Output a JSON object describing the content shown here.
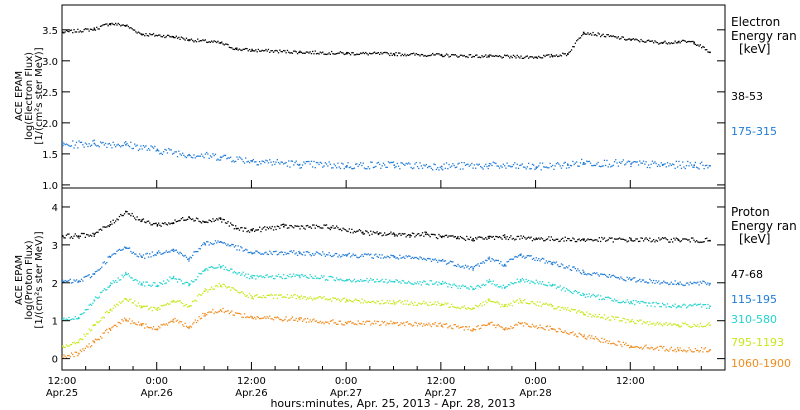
{
  "figure": {
    "xlabel": "hours:minutes, Apr. 25, 2013 - Apr. 28, 2013",
    "x_ticks": [
      {
        "time": "12:00",
        "date": "Apr.25"
      },
      {
        "time": "0:00",
        "date": "Apr.26"
      },
      {
        "time": "12:00",
        "date": "Apr.26"
      },
      {
        "time": "0:00",
        "date": "Apr.27"
      },
      {
        "time": "12:00",
        "date": "Apr.27"
      },
      {
        "time": "0:00",
        "date": "Apr.28"
      },
      {
        "time": "12:00",
        "date": ""
      }
    ]
  },
  "chart_data": [
    {
      "type": "scatter",
      "panel": "electron",
      "ylabel_lines": [
        "ACE EPAM",
        "log(Electron Flux)",
        "[1/(cm²s ster MeV)]"
      ],
      "x_unit": "hours since Apr. 25, 2013 12:00",
      "xlim": [
        0,
        84
      ],
      "ylim": [
        0.95,
        3.9
      ],
      "y_ticks": [
        "1.0",
        "1.5",
        "2.0",
        "2.5",
        "3.0",
        "3.5"
      ],
      "legend_title_lines": [
        "Electron",
        "Energy ran",
        "[keV]"
      ],
      "series": [
        {
          "name": "38-53",
          "color": "#000000",
          "x": [
            0,
            4,
            6,
            8,
            10,
            14,
            16,
            20,
            22,
            24,
            30,
            36,
            42,
            48,
            54,
            60,
            62,
            64,
            66,
            72,
            76,
            78,
            80,
            82
          ],
          "y": [
            3.47,
            3.52,
            3.61,
            3.58,
            3.44,
            3.4,
            3.35,
            3.3,
            3.2,
            3.18,
            3.15,
            3.13,
            3.12,
            3.1,
            3.08,
            3.07,
            3.09,
            3.12,
            3.47,
            3.35,
            3.3,
            3.32,
            3.31,
            3.15
          ]
        },
        {
          "name": "175-315",
          "color": "#1f7ad6",
          "x": [
            0,
            4,
            8,
            12,
            16,
            20,
            24,
            30,
            36,
            42,
            48,
            54,
            60,
            64,
            66,
            72,
            76,
            80,
            82
          ],
          "y": [
            1.65,
            1.68,
            1.66,
            1.57,
            1.5,
            1.46,
            1.4,
            1.34,
            1.32,
            1.33,
            1.31,
            1.32,
            1.3,
            1.33,
            1.37,
            1.35,
            1.33,
            1.33,
            1.32
          ]
        }
      ]
    },
    {
      "type": "scatter",
      "panel": "proton",
      "ylabel_lines": [
        "ACE EPAM",
        "log(Proton Flux)",
        "[1/(cm²s ster MeV)]"
      ],
      "x_unit": "hours since Apr. 25, 2013 12:00",
      "xlim": [
        0,
        84
      ],
      "ylim": [
        -0.3,
        4.5
      ],
      "y_ticks": [
        "0",
        "1",
        "2",
        "3",
        "4"
      ],
      "legend_title_lines": [
        "Proton",
        "Energy ran",
        "[keV]"
      ],
      "series": [
        {
          "name": "47-68",
          "color": "#000000",
          "x": [
            0,
            2,
            4,
            6,
            8,
            10,
            12,
            14,
            16,
            18,
            20,
            22,
            24,
            28,
            34,
            38,
            40,
            42,
            44,
            46,
            48,
            50,
            52,
            54,
            56,
            60,
            66,
            72,
            78,
            82
          ],
          "y": [
            3.25,
            3.25,
            3.3,
            3.55,
            3.9,
            3.65,
            3.55,
            3.6,
            3.75,
            3.62,
            3.7,
            3.45,
            3.4,
            3.5,
            3.48,
            3.35,
            3.3,
            3.3,
            3.28,
            3.3,
            3.22,
            3.2,
            3.18,
            3.2,
            3.22,
            3.18,
            3.15,
            3.15,
            3.15,
            3.13
          ]
        },
        {
          "name": "115-195",
          "color": "#1f7ad6",
          "x": [
            0,
            2,
            4,
            6,
            8,
            10,
            12,
            14,
            16,
            18,
            20,
            24,
            30,
            36,
            42,
            48,
            52,
            54,
            56,
            58,
            62,
            66,
            72,
            78,
            82
          ],
          "y": [
            2.05,
            2.05,
            2.25,
            2.7,
            2.95,
            2.7,
            2.8,
            2.9,
            2.65,
            3.05,
            3.1,
            2.8,
            2.8,
            2.75,
            2.7,
            2.6,
            2.4,
            2.65,
            2.5,
            2.75,
            2.55,
            2.3,
            2.1,
            2.0,
            2.0
          ]
        },
        {
          "name": "310-580",
          "color": "#22d3cf",
          "x": [
            0,
            2,
            4,
            6,
            8,
            10,
            12,
            14,
            16,
            18,
            20,
            24,
            30,
            36,
            42,
            48,
            52,
            54,
            56,
            58,
            62,
            66,
            72,
            78,
            82
          ],
          "y": [
            1.05,
            1.1,
            1.55,
            1.95,
            2.25,
            2.0,
            1.95,
            2.15,
            1.95,
            2.35,
            2.45,
            2.15,
            2.2,
            2.1,
            2.05,
            2.0,
            1.85,
            2.05,
            1.9,
            2.1,
            1.95,
            1.7,
            1.5,
            1.4,
            1.4
          ]
        },
        {
          "name": "795-1193",
          "color": "#c6e81a",
          "x": [
            0,
            2,
            4,
            6,
            8,
            10,
            12,
            14,
            16,
            18,
            20,
            24,
            30,
            36,
            42,
            48,
            52,
            54,
            56,
            58,
            62,
            66,
            72,
            78,
            82
          ],
          "y": [
            0.35,
            0.45,
            0.9,
            1.3,
            1.6,
            1.4,
            1.3,
            1.55,
            1.4,
            1.8,
            1.95,
            1.65,
            1.65,
            1.55,
            1.5,
            1.45,
            1.35,
            1.55,
            1.4,
            1.55,
            1.4,
            1.2,
            1.0,
            0.9,
            0.9
          ]
        },
        {
          "name": "1060-1900",
          "color": "#f08c1e",
          "x": [
            0,
            2,
            4,
            6,
            8,
            10,
            12,
            14,
            16,
            18,
            20,
            24,
            30,
            36,
            42,
            48,
            52,
            54,
            56,
            58,
            62,
            66,
            72,
            78,
            82
          ],
          "y": [
            0.05,
            0.15,
            0.45,
            0.8,
            1.05,
            0.9,
            0.8,
            1.05,
            0.85,
            1.2,
            1.3,
            1.1,
            1.05,
            0.95,
            0.95,
            0.9,
            0.8,
            0.95,
            0.8,
            0.95,
            0.8,
            0.6,
            0.35,
            0.25,
            0.25
          ]
        }
      ]
    }
  ]
}
